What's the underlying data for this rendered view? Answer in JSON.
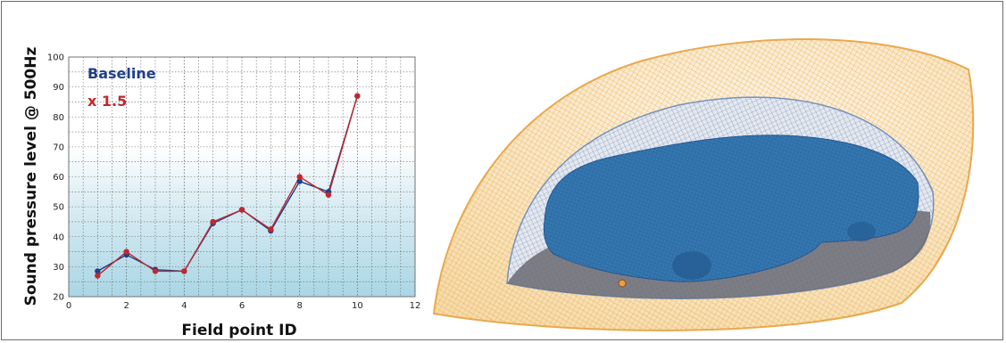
{
  "chart_data": {
    "type": "line",
    "title": "",
    "xlabel": "Field point ID",
    "ylabel": "Sound pressure level @ 500Hz",
    "xlim": [
      0,
      12
    ],
    "ylim": [
      20,
      100
    ],
    "xticks": [
      0,
      2,
      4,
      6,
      8,
      10,
      12
    ],
    "yticks": [
      20,
      30,
      40,
      50,
      60,
      70,
      80,
      90,
      100
    ],
    "grid": true,
    "legend_position": "top-left",
    "x": [
      1,
      2,
      3,
      4,
      5,
      6,
      7,
      8,
      9,
      10
    ],
    "series": [
      {
        "name": "Baseline",
        "color": "#1f3f8a",
        "values": [
          28.5,
          34,
          29,
          28.5,
          44.5,
          49,
          42,
          58.5,
          55,
          87
        ]
      },
      {
        "name": "x 1.5",
        "color": "#c0282d",
        "values": [
          27,
          35,
          28.5,
          28.5,
          45,
          49,
          42.5,
          60,
          54,
          87
        ]
      }
    ]
  },
  "illustration": {
    "outer_dome_color": "#f0b25a",
    "inner_dome_color": "#7a93b8",
    "car_color": "#2f6fa8",
    "floor_color": "#6b6a72"
  }
}
